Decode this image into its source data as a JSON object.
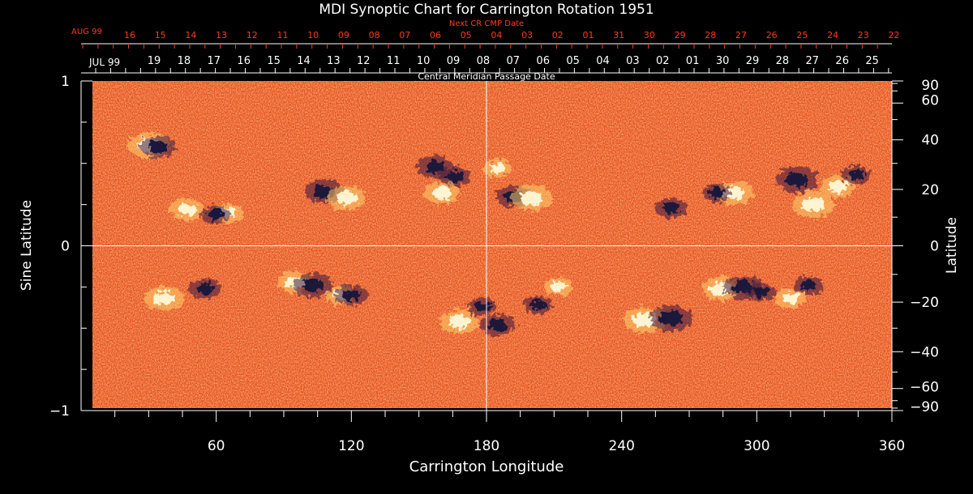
{
  "chart_data": {
    "type": "heatmap",
    "title": "MDI Synoptic Chart for Carrington Rotation 1951",
    "xlabel": "Carrington Longitude",
    "ylabel_left": "Sine Latitude",
    "ylabel_right": "Latitude",
    "xlim": [
      0,
      360
    ],
    "ylim": [
      -1,
      1
    ],
    "x_ticks": [
      60,
      120,
      180,
      240,
      300,
      360
    ],
    "y_ticks_left": [
      {
        "value": 1,
        "label": "1"
      },
      {
        "value": 0,
        "label": "0"
      },
      {
        "value": -1,
        "label": "−1"
      }
    ],
    "y_ticks_right": [
      {
        "deg": 90,
        "label": "90"
      },
      {
        "deg": 60,
        "label": "60"
      },
      {
        "deg": 40,
        "label": "40"
      },
      {
        "deg": 20,
        "label": "20"
      },
      {
        "deg": 0,
        "label": "0"
      },
      {
        "deg": -20,
        "label": "−20"
      },
      {
        "deg": -40,
        "label": "−40"
      },
      {
        "deg": -60,
        "label": "−60"
      },
      {
        "deg": -90,
        "label": "−90"
      }
    ],
    "cmp_axis": {
      "label": "Central Meridian Passage Date",
      "month_label": "JUL 99",
      "day_labels": [
        "19",
        "18",
        "17",
        "16",
        "15",
        "14",
        "13",
        "12",
        "11",
        "10",
        "09",
        "08",
        "07",
        "06",
        "05",
        "04",
        "03",
        "02",
        "01",
        "30",
        "29",
        "28",
        "27",
        "26",
        "25"
      ]
    },
    "next_cmp_axis": {
      "label": "Next CR CMP Date",
      "month_label": "AUG 99",
      "day_labels": [
        "16",
        "15",
        "14",
        "13",
        "12",
        "11",
        "10",
        "09",
        "08",
        "07",
        "06",
        "05",
        "04",
        "03",
        "02",
        "01",
        "31",
        "30",
        "29",
        "28",
        "27",
        "26",
        "25",
        "24",
        "23",
        "22"
      ]
    },
    "crosshair": {
      "longitude": 180,
      "sine_latitude": 0
    },
    "colors": {
      "background_field": "#e8501a",
      "positive_polarity": "#fff8d8",
      "negative_polarity": "#14143c",
      "axis": "#ffffff",
      "next_cmp_axis": "#ff3a1a"
    },
    "active_regions": [
      {
        "lon": 30,
        "sinlat": 0.61,
        "polarity": "positive",
        "strength": 1.0
      },
      {
        "lon": 34,
        "sinlat": 0.6,
        "polarity": "negative",
        "strength": 0.8
      },
      {
        "lon": 47,
        "sinlat": 0.22,
        "polarity": "positive",
        "strength": 0.8
      },
      {
        "lon": 65,
        "sinlat": 0.2,
        "polarity": "positive",
        "strength": 0.7
      },
      {
        "lon": 60,
        "sinlat": 0.19,
        "polarity": "negative",
        "strength": 0.6
      },
      {
        "lon": 108,
        "sinlat": 0.33,
        "polarity": "negative",
        "strength": 0.9
      },
      {
        "lon": 118,
        "sinlat": 0.29,
        "polarity": "positive",
        "strength": 0.9
      },
      {
        "lon": 157,
        "sinlat": 0.48,
        "polarity": "negative",
        "strength": 0.8
      },
      {
        "lon": 166,
        "sinlat": 0.42,
        "polarity": "negative",
        "strength": 0.7
      },
      {
        "lon": 160,
        "sinlat": 0.32,
        "polarity": "positive",
        "strength": 0.8
      },
      {
        "lon": 185,
        "sinlat": 0.47,
        "polarity": "positive",
        "strength": 0.6
      },
      {
        "lon": 192,
        "sinlat": 0.3,
        "polarity": "negative",
        "strength": 0.8
      },
      {
        "lon": 200,
        "sinlat": 0.29,
        "polarity": "positive",
        "strength": 1.0
      },
      {
        "lon": 262,
        "sinlat": 0.23,
        "polarity": "negative",
        "strength": 0.7
      },
      {
        "lon": 290,
        "sinlat": 0.32,
        "polarity": "positive",
        "strength": 0.9
      },
      {
        "lon": 282,
        "sinlat": 0.32,
        "polarity": "negative",
        "strength": 0.6
      },
      {
        "lon": 318,
        "sinlat": 0.4,
        "polarity": "negative",
        "strength": 1.0
      },
      {
        "lon": 325,
        "sinlat": 0.25,
        "polarity": "positive",
        "strength": 1.0
      },
      {
        "lon": 336,
        "sinlat": 0.36,
        "polarity": "positive",
        "strength": 0.8
      },
      {
        "lon": 344,
        "sinlat": 0.43,
        "polarity": "negative",
        "strength": 0.6
      },
      {
        "lon": 37,
        "sinlat": -0.32,
        "polarity": "positive",
        "strength": 0.9
      },
      {
        "lon": 55,
        "sinlat": -0.26,
        "polarity": "negative",
        "strength": 0.7
      },
      {
        "lon": 95,
        "sinlat": -0.22,
        "polarity": "positive",
        "strength": 0.8
      },
      {
        "lon": 103,
        "sinlat": -0.24,
        "polarity": "negative",
        "strength": 0.9
      },
      {
        "lon": 115,
        "sinlat": -0.3,
        "polarity": "positive",
        "strength": 0.6
      },
      {
        "lon": 120,
        "sinlat": -0.3,
        "polarity": "negative",
        "strength": 0.7
      },
      {
        "lon": 168,
        "sinlat": -0.46,
        "polarity": "positive",
        "strength": 0.9
      },
      {
        "lon": 185,
        "sinlat": -0.48,
        "polarity": "negative",
        "strength": 0.8
      },
      {
        "lon": 178,
        "sinlat": -0.37,
        "polarity": "negative",
        "strength": 0.6
      },
      {
        "lon": 203,
        "sinlat": -0.36,
        "polarity": "negative",
        "strength": 0.6
      },
      {
        "lon": 212,
        "sinlat": -0.25,
        "polarity": "positive",
        "strength": 0.6
      },
      {
        "lon": 250,
        "sinlat": -0.45,
        "polarity": "positive",
        "strength": 1.0
      },
      {
        "lon": 262,
        "sinlat": -0.44,
        "polarity": "negative",
        "strength": 1.0
      },
      {
        "lon": 284,
        "sinlat": -0.26,
        "polarity": "positive",
        "strength": 0.9
      },
      {
        "lon": 294,
        "sinlat": -0.25,
        "polarity": "negative",
        "strength": 0.9
      },
      {
        "lon": 302,
        "sinlat": -0.28,
        "polarity": "negative",
        "strength": 0.6
      },
      {
        "lon": 315,
        "sinlat": -0.32,
        "polarity": "positive",
        "strength": 0.7
      },
      {
        "lon": 323,
        "sinlat": -0.24,
        "polarity": "negative",
        "strength": 0.6
      }
    ]
  }
}
